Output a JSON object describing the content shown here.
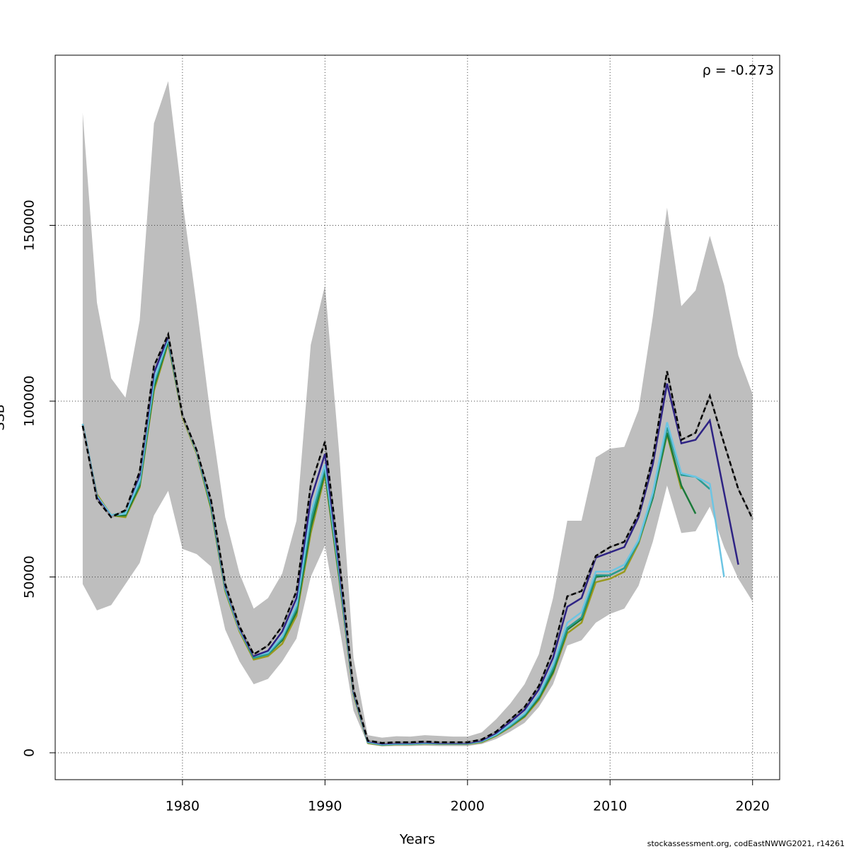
{
  "chart_data": {
    "type": "line",
    "xlabel": "Years",
    "ylabel": "SSB",
    "annotation": "ρ = -0.273",
    "footer": "stockassessment.org, codEastNWWG2021, r14261",
    "x": [
      1973,
      1974,
      1975,
      1976,
      1977,
      1978,
      1979,
      1980,
      1981,
      1982,
      1983,
      1984,
      1985,
      1986,
      1987,
      1988,
      1989,
      1990,
      1991,
      1992,
      1993,
      1994,
      1995,
      1996,
      1997,
      1998,
      1999,
      2000,
      2001,
      2002,
      2003,
      2004,
      2005,
      2006,
      2007,
      2008,
      2009,
      2010,
      2011,
      2012,
      2013,
      2014,
      2015,
      2016,
      2017,
      2018,
      2019,
      2020
    ],
    "band": {
      "color": "#bebebe",
      "high": [
        182000,
        128000,
        106500,
        101000,
        123000,
        179000,
        191000,
        157000,
        127000,
        95000,
        67000,
        51000,
        41000,
        44000,
        51000,
        66000,
        116000,
        133000,
        85000,
        27000,
        5000,
        4300,
        4700,
        4600,
        5000,
        4800,
        4600,
        4600,
        5800,
        9500,
        14000,
        19500,
        28000,
        44000,
        66000,
        66000,
        84000,
        86500,
        87000,
        97500,
        124000,
        155000,
        127000,
        131500,
        147000,
        133000,
        113000,
        102000
      ],
      "low": [
        48000,
        40500,
        42000,
        48000,
        54000,
        67500,
        74500,
        58000,
        56500,
        53000,
        35000,
        26000,
        19500,
        21000,
        26000,
        32500,
        50000,
        59000,
        36000,
        12000,
        2400,
        1800,
        1900,
        1900,
        2000,
        1900,
        1900,
        1900,
        2500,
        3900,
        6000,
        8500,
        13000,
        19500,
        30500,
        32000,
        37000,
        39500,
        41000,
        47500,
        60000,
        76000,
        62500,
        63000,
        70000,
        58500,
        49500,
        43000
      ]
    },
    "series": [
      {
        "color": "#000000",
        "dash": true,
        "values": [
          93000,
          72000,
          67000,
          69000,
          80000,
          110000,
          119000,
          96000,
          86000,
          72000,
          48000,
          36000,
          28000,
          30500,
          36000,
          46000,
          76000,
          88500,
          55000,
          18000,
          3500,
          2800,
          3000,
          3000,
          3200,
          3000,
          3000,
          3000,
          3800,
          6000,
          9500,
          13000,
          19000,
          29000,
          44500,
          46000,
          56000,
          58500,
          60000,
          68000,
          84000,
          108500,
          89000,
          91000,
          101500,
          88000,
          75000,
          66500
        ]
      },
      {
        "color": "#2e2384",
        "values": [
          93000,
          72500,
          67000,
          69000,
          79000,
          108000,
          118500,
          96000,
          86000,
          71500,
          47500,
          35500,
          27500,
          29000,
          34500,
          44000,
          72000,
          85000,
          53000,
          17500,
          3300,
          2600,
          2800,
          2800,
          3000,
          2800,
          2800,
          2800,
          3500,
          5600,
          8800,
          12200,
          18000,
          27000,
          41500,
          44000,
          55500,
          57000,
          58500,
          67000,
          82000,
          105000,
          88000,
          89000,
          94500,
          74000,
          53500,
          null
        ]
      },
      {
        "color": "#6dc5e3",
        "values": [
          93500,
          73000,
          67500,
          68000,
          77500,
          106000,
          118000,
          96000,
          85500,
          71000,
          47000,
          35000,
          27500,
          28500,
          33000,
          42000,
          68000,
          82000,
          51500,
          17200,
          3100,
          2400,
          2600,
          2600,
          2800,
          2700,
          2700,
          2700,
          3300,
          5200,
          8000,
          11200,
          16500,
          25000,
          37000,
          40000,
          51500,
          51500,
          53500,
          60500,
          74000,
          94000,
          79500,
          78500,
          76500,
          50000,
          null,
          null
        ]
      },
      {
        "color": "#2a9d93",
        "values": [
          93500,
          73000,
          67500,
          68500,
          76500,
          105000,
          117500,
          96000,
          85500,
          70500,
          46500,
          35000,
          27000,
          28000,
          32500,
          41000,
          66000,
          81000,
          51000,
          17000,
          3000,
          2300,
          2500,
          2500,
          2700,
          2600,
          2600,
          2600,
          3200,
          5000,
          7600,
          10800,
          16000,
          24000,
          35500,
          38500,
          50500,
          50500,
          52500,
          60000,
          73000,
          92500,
          79000,
          78500,
          75000,
          null,
          null,
          null
        ]
      },
      {
        "color": "#1b7a3a",
        "values": [
          93500,
          73000,
          67500,
          67500,
          76000,
          104000,
          117000,
          96000,
          85500,
          70000,
          46500,
          35000,
          27000,
          28000,
          32000,
          40000,
          64000,
          80000,
          50000,
          17000,
          3000,
          2300,
          2500,
          2500,
          2700,
          2600,
          2600,
          2600,
          3200,
          5000,
          7500,
          10500,
          15500,
          23000,
          35000,
          38000,
          50000,
          50500,
          52500,
          60000,
          72500,
          91000,
          76000,
          68000,
          null,
          null,
          null,
          null
        ]
      },
      {
        "color": "#9a9a1e",
        "values": [
          93000,
          73500,
          67500,
          67000,
          75500,
          103000,
          116500,
          95500,
          85000,
          69500,
          46000,
          34500,
          26500,
          27500,
          31000,
          39000,
          62500,
          79000,
          49500,
          16500,
          2800,
          2200,
          2400,
          2400,
          2600,
          2500,
          2500,
          2500,
          3000,
          4800,
          7300,
          10200,
          15000,
          22500,
          34000,
          37000,
          48500,
          49500,
          51500,
          59500,
          72500,
          90500,
          75000,
          null,
          null,
          null,
          null,
          null
        ]
      }
    ],
    "xlim": [
      1971.07,
      2021.9
    ],
    "ylim": [
      -7646,
      198390
    ],
    "xticks": [
      1980,
      1990,
      2000,
      2010,
      2020
    ],
    "yticks": [
      0,
      50000,
      100000,
      150000
    ],
    "grid": true
  }
}
